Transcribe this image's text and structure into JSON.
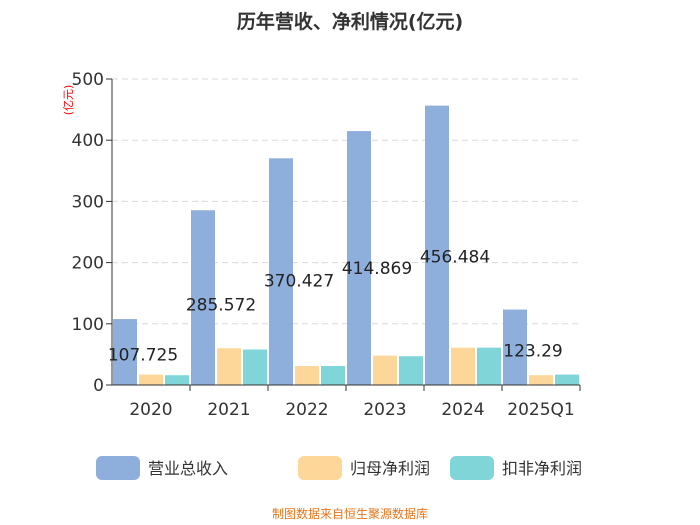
{
  "chart_data": {
    "type": "bar",
    "title": "历年营收、净利情况(亿元)",
    "ylabel": "(亿元)",
    "xlabel": "",
    "ylim": [
      0,
      500
    ],
    "yticks": [
      0,
      100,
      200,
      300,
      400,
      500
    ],
    "grid": true,
    "legend_position": "bottom",
    "categories": [
      "2020",
      "2021",
      "2022",
      "2023",
      "2024",
      "2025Q1"
    ],
    "series": [
      {
        "name": "营业总收入",
        "color": "#8eaedc",
        "values": [
          107.725,
          285.572,
          370.427,
          414.869,
          456.484,
          123.29
        ]
      },
      {
        "name": "归母净利润",
        "color": "#fdd699",
        "values": [
          17,
          60,
          31,
          48,
          61,
          16
        ]
      },
      {
        "name": "扣非净利润",
        "color": "#7fd5d8",
        "values": [
          16,
          58,
          31,
          47,
          61,
          17
        ]
      }
    ],
    "data_labels": [
      "107.725",
      "285.572",
      "370.427",
      "414.869",
      "456.484",
      "123.29"
    ]
  },
  "footer": "制图数据来自恒生聚源数据库"
}
